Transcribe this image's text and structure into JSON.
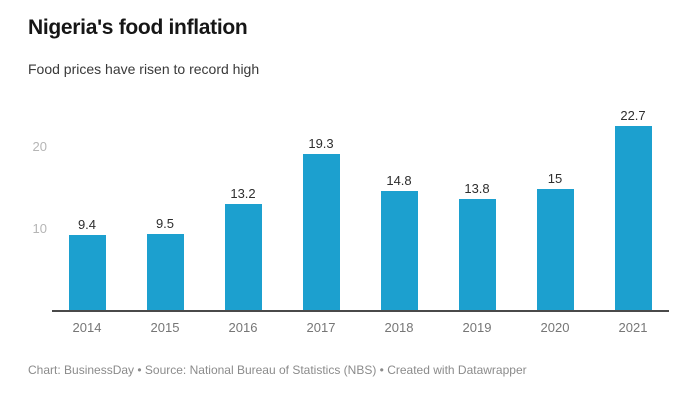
{
  "header": {
    "title": "Nigeria's food inflation",
    "subtitle": "Food prices have risen to record high"
  },
  "chart_data": {
    "type": "bar",
    "title": "Nigeria's food inflation",
    "subtitle": "Food prices have risen to record high",
    "categories": [
      "2014",
      "2015",
      "2016",
      "2017",
      "2018",
      "2019",
      "2020",
      "2021"
    ],
    "values": [
      9.4,
      9.5,
      13.2,
      19.3,
      14.8,
      13.8,
      15,
      22.7
    ],
    "value_labels": [
      "9.4",
      "9.5",
      "13.2",
      "19.3",
      "14.8",
      "13.8",
      "15",
      "22.7"
    ],
    "xlabel": "",
    "ylabel": "",
    "ylim": [
      0,
      25
    ],
    "yticks": [
      10,
      20
    ],
    "ytick_labels": [
      "10",
      "20"
    ],
    "grid": false,
    "legend": false,
    "bar_color": "#1ca0cf",
    "axis_line_color": "#4a4a4a"
  },
  "footer": {
    "text": "Chart: BusinessDay • Source: National Bureau of Statistics (NBS) • Created with Datawrapper"
  }
}
